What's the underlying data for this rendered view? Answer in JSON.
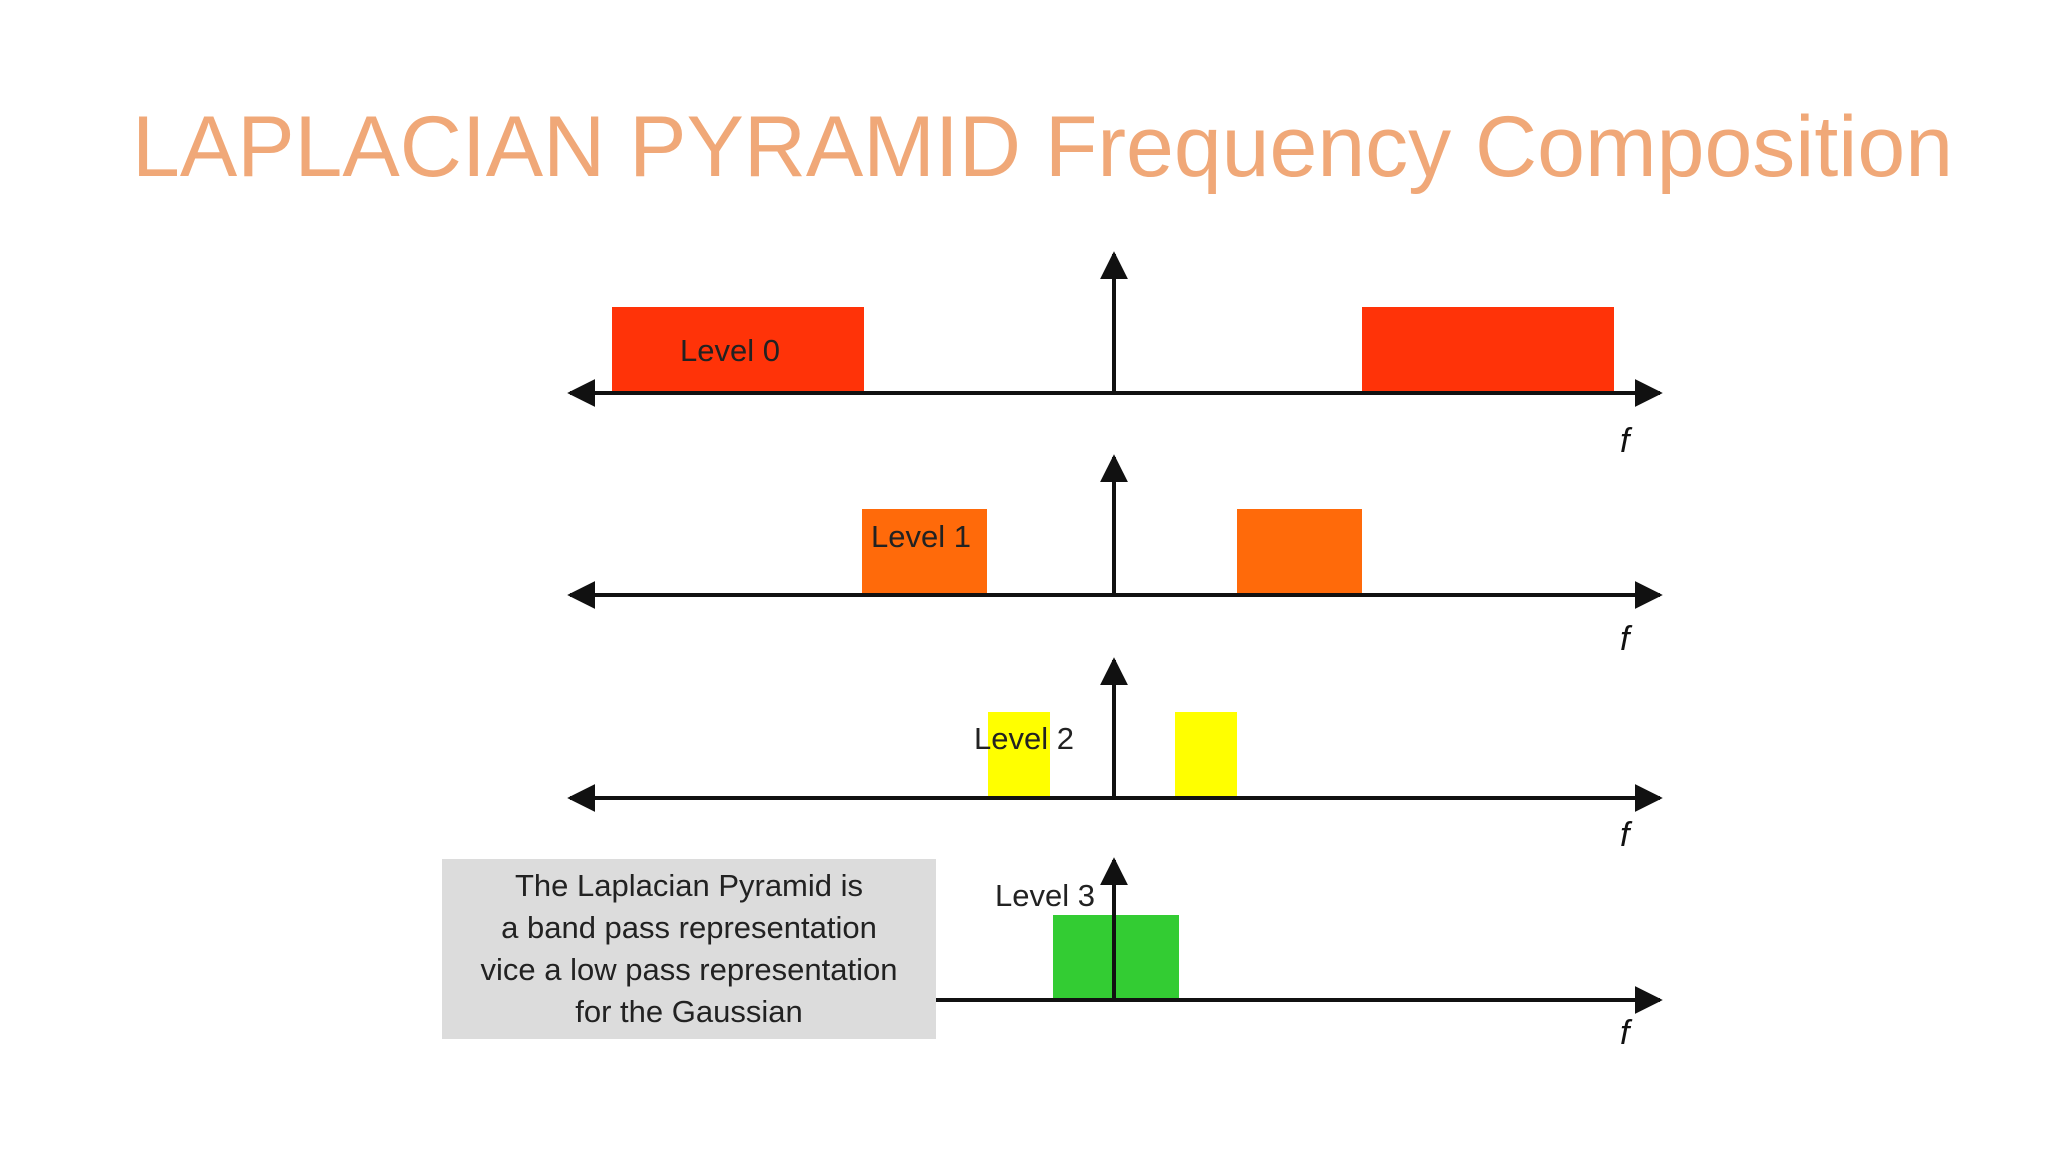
{
  "title": "LAPLACIAN PYRAMID Frequency Composition",
  "colors": {
    "title": "#f0a878",
    "level_0": "#ff3308",
    "level_1": "#ff6a0a",
    "level_2": "#ffff00",
    "level_3": "#33cc33",
    "axis": "#111111",
    "caption_background": "#dcdcdc"
  },
  "axis_label": "f",
  "levels": [
    {
      "label": "Level 0"
    },
    {
      "label": "Level 1"
    },
    {
      "label": "Level 2"
    },
    {
      "label": "Level 3"
    }
  ],
  "caption": {
    "lines": [
      "The Laplacian Pyramid is",
      "a band pass representation",
      "vice a low pass representation",
      "for the Gaussian"
    ]
  }
}
